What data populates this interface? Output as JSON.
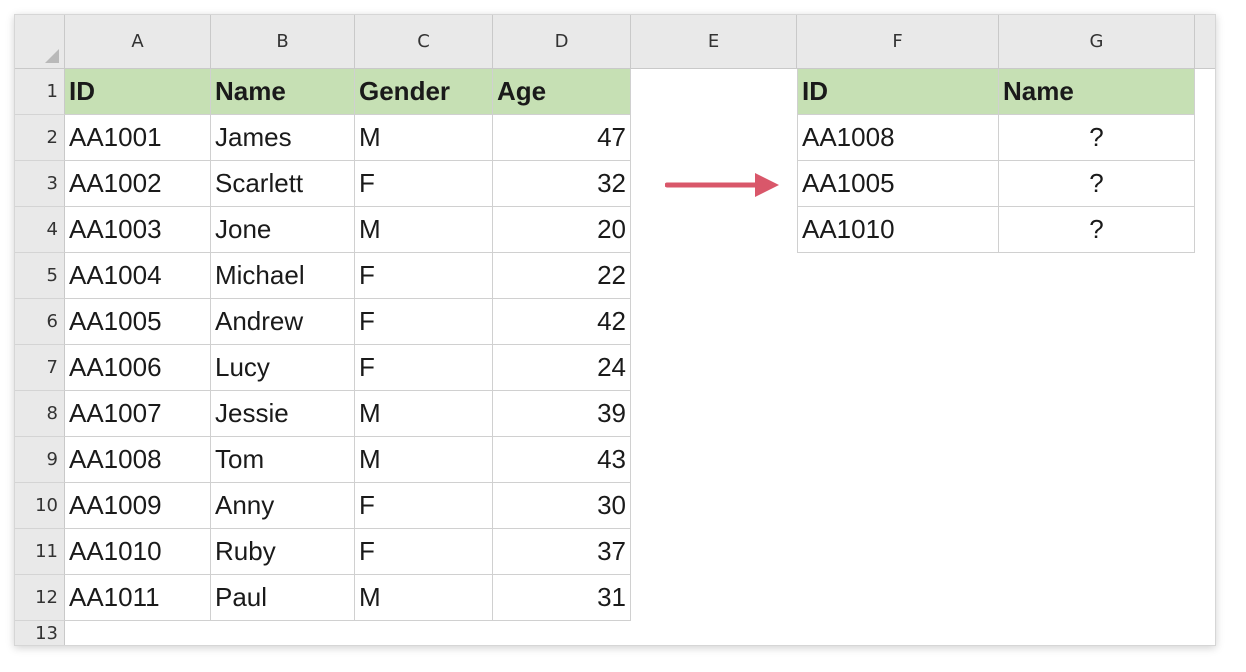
{
  "columns": [
    "A",
    "B",
    "C",
    "D",
    "E",
    "F",
    "G"
  ],
  "row_numbers": [
    "1",
    "2",
    "3",
    "4",
    "5",
    "6",
    "7",
    "8",
    "9",
    "10",
    "11",
    "12"
  ],
  "partial_row_number": "13",
  "left_table": {
    "headers": [
      "ID",
      "Name",
      "Gender",
      "Age"
    ],
    "rows": [
      [
        "AA1001",
        "James",
        "M",
        "47"
      ],
      [
        "AA1002",
        "Scarlett",
        "F",
        "32"
      ],
      [
        "AA1003",
        "Jone",
        "M",
        "20"
      ],
      [
        "AA1004",
        "Michael",
        "F",
        "22"
      ],
      [
        "AA1005",
        "Andrew",
        "F",
        "42"
      ],
      [
        "AA1006",
        "Lucy",
        "F",
        "24"
      ],
      [
        "AA1007",
        "Jessie",
        "M",
        "39"
      ],
      [
        "AA1008",
        "Tom",
        "M",
        "43"
      ],
      [
        "AA1009",
        "Anny",
        "F",
        "30"
      ],
      [
        "AA1010",
        "Ruby",
        "F",
        "37"
      ],
      [
        "AA1011",
        "Paul",
        "M",
        "31"
      ]
    ]
  },
  "right_table": {
    "headers": [
      "ID",
      "Name"
    ],
    "rows": [
      [
        "AA1008",
        "?"
      ],
      [
        "AA1005",
        "?"
      ],
      [
        "AA1010",
        "?"
      ]
    ]
  },
  "colors": {
    "header_fill": "#c6e0b4",
    "arrow": "#d9576a"
  },
  "arrow_icon": "right-arrow-icon"
}
